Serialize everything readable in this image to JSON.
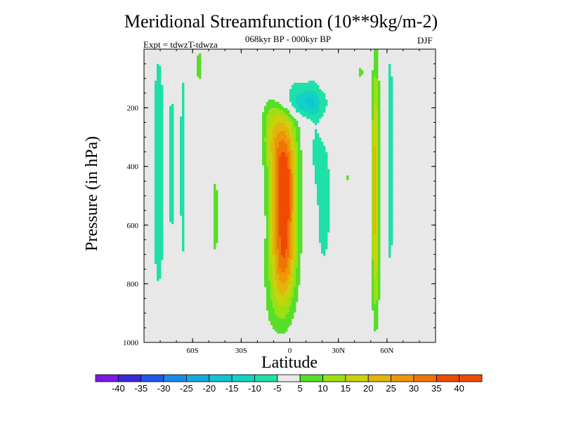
{
  "chart_data": {
    "type": "heatmap",
    "title": "Meridional Streamfunction (10**9kg/m-2)",
    "subtitle": "068kyr BP - 000kyr BP",
    "left_label": "Expt = tdwzT-tdwza",
    "right_label": "DJF",
    "xlabel": "Latitude",
    "ylabel": "Pressure (in hPa)",
    "xlim": [
      -90,
      90
    ],
    "ylim": [
      1000,
      0
    ],
    "x_ticks": [
      -60,
      -30,
      0,
      30,
      60
    ],
    "x_tick_labels": [
      "60S",
      "30S",
      "0",
      "30N",
      "60N"
    ],
    "y_ticks": [
      200,
      400,
      600,
      800,
      1000
    ],
    "y_tick_labels": [
      "200",
      "400",
      "600",
      "800",
      "1000"
    ],
    "levels": [
      -40,
      -35,
      -30,
      -25,
      -20,
      -15,
      -10,
      -5,
      5,
      10,
      15,
      20,
      25,
      30,
      35,
      40
    ],
    "colorbar_labels": [
      "-40",
      "-35",
      "-30",
      "-25",
      "-20",
      "-15",
      "-10",
      "-5",
      "5",
      "10",
      "15",
      "20",
      "25",
      "30",
      "35",
      "40"
    ],
    "colors": [
      "#7b1ce0",
      "#3c28d8",
      "#1e5ae6",
      "#1a8ce6",
      "#16a8dc",
      "#14c2d4",
      "#12d2c4",
      "#1ee0a8",
      "#e8e8e8",
      "#56de28",
      "#9ce014",
      "#c8d20e",
      "#e4b40a",
      "#ec9608",
      "#ee7406",
      "#ee4a04"
    ],
    "background_color": "#e8e8e8",
    "features": [
      {
        "lat": -3.5,
        "p": 550,
        "dlat": 7.5,
        "dp": 290,
        "amp": 34
      },
      {
        "lat": -5,
        "p": 400,
        "dlat": 9,
        "dp": 220,
        "amp": 10
      },
      {
        "lat": -7,
        "p": 810,
        "dlat": 9,
        "dp": 170,
        "amp": 8
      },
      {
        "lat": -12,
        "p": 260,
        "dlat": 6,
        "dp": 130,
        "amp": 8
      },
      {
        "lat": 2,
        "p": 150,
        "dlat": 18,
        "dp": 60,
        "amp": -7
      },
      {
        "lat": 10,
        "p": 190,
        "dlat": 11,
        "dp": 45,
        "amp": -10
      },
      {
        "lat": 15,
        "p": 290,
        "dlat": 4,
        "dp": 200,
        "amp": -4
      },
      {
        "lat": 21,
        "p": 520,
        "dlat": 5.5,
        "dp": 260,
        "amp": -7
      },
      {
        "lat": 53,
        "p": 480,
        "dlat": 2.3,
        "dp": 430,
        "amp": 22
      },
      {
        "lat": 62,
        "p": 380,
        "dlat": 2,
        "dp": 440,
        "amp": -8
      },
      {
        "lat": 44,
        "p": 80,
        "dlat": 1,
        "dp": 40,
        "amp": 8
      },
      {
        "lat": -81,
        "p": 420,
        "dlat": 3.5,
        "dp": 420,
        "amp": -10
      },
      {
        "lat": -73,
        "p": 390,
        "dlat": 2,
        "dp": 320,
        "amp": -7
      },
      {
        "lat": -66,
        "p": 400,
        "dlat": 2,
        "dp": 370,
        "amp": -8
      },
      {
        "lat": -46,
        "p": 570,
        "dlat": 2,
        "dp": 170,
        "amp": 7
      },
      {
        "lat": -56,
        "p": 60,
        "dlat": 1.6,
        "dp": 60,
        "amp": 8
      },
      {
        "lat": 36,
        "p": 440,
        "dlat": 1,
        "dp": 10,
        "amp": 8
      }
    ]
  }
}
